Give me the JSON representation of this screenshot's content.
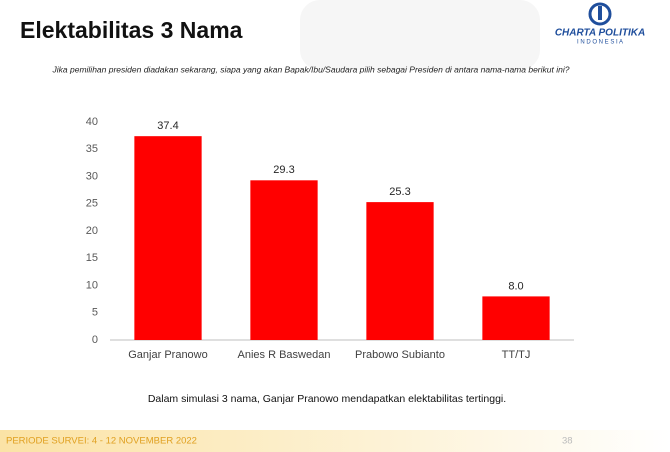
{
  "chart_data": {
    "type": "bar",
    "title": "Elektabilitas 3 Nama",
    "subtitle": "Jika pemilihan presiden diadakan sekarang, siapa yang akan Bapak/Ibu/Saudara pilih sebagai Presiden di antara nama-nama berikut ini?",
    "categories": [
      "Ganjar Pranowo",
      "Anies R Baswedan",
      "Prabowo Subianto",
      "TT/TJ"
    ],
    "values": [
      37.4,
      29.3,
      25.3,
      8.0
    ],
    "value_labels": [
      "37.4",
      "29.3",
      "25.3",
      "8.0"
    ],
    "color": "#ff0000",
    "ylim": [
      0,
      40
    ],
    "yticks": [
      0,
      5,
      10,
      15,
      20,
      25,
      30,
      35,
      40
    ],
    "grid": false,
    "annotation": "Dalam simulasi 3 nama, Ganjar Pranowo mendapatkan elektabilitas tertinggi."
  },
  "slide": {
    "logo": "CHARTA POLITIKA",
    "logo_sub": "I N D O N E S I A",
    "footer": "PERIODE SURVEI: 4 - 12 NOVEMBER 2022",
    "page": "38"
  }
}
